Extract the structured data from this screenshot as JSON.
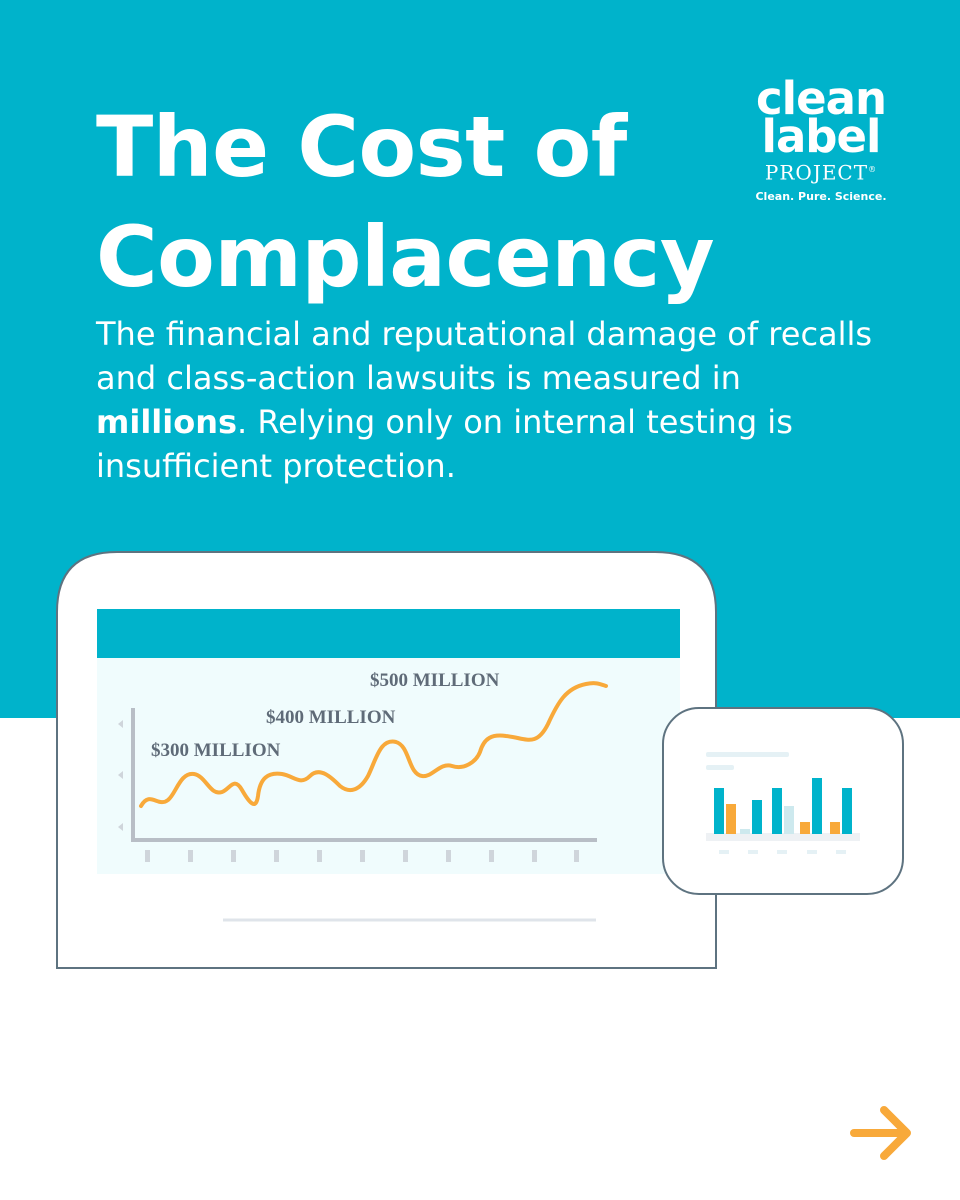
{
  "headline": {
    "line1": "The Cost of",
    "line2": "Complacency"
  },
  "body": {
    "part1": "The financial and reputational damage of recalls and class-action lawsuits is measured in ",
    "emphasis": "millions",
    "part2": ". Relying only on internal testing is insufficient protection."
  },
  "logo": {
    "word1": "clean",
    "word2": "label",
    "word3": "PROJECT",
    "mark": "®",
    "tagline": "Clean. Pure. Science."
  },
  "illustration": {
    "labels": [
      "$300 MILLION",
      "$400 MILLION",
      "$500 MILLION"
    ]
  },
  "colors": {
    "brand": "#00b3cb",
    "accent": "#f8a93a",
    "chart_bg": "#f0fcfd",
    "frame": "#5e7380"
  },
  "icons": {
    "next": "arrow-right-icon"
  }
}
